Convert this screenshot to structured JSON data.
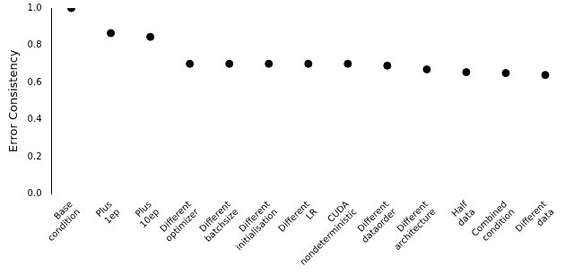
{
  "chart_data": {
    "type": "scatter",
    "y_label": "Error Consistency",
    "categories": [
      "Base condition",
      "Plus 1ep",
      "Plus 10ep",
      "Different optimizer",
      "Different batchsize",
      "Different initialisation",
      "Different LR",
      "CUDA nondeterministic",
      "Different dataorder",
      "Different architecture",
      "Half data",
      "Combined condition",
      "Different data"
    ],
    "values": [
      1.0,
      0.865,
      0.845,
      0.7,
      0.7,
      0.7,
      0.7,
      0.7,
      0.69,
      0.67,
      0.655,
      0.65,
      0.64
    ],
    "color": "#000000",
    "marker": "circle",
    "ylim": [
      0,
      1
    ],
    "yticks": [
      {
        "value": 0,
        "label": "0.0"
      },
      0.2,
      0.4,
      0.6,
      0.8,
      {
        "value": 1,
        "label": "1.0"
      }
    ],
    "grid": false
  }
}
